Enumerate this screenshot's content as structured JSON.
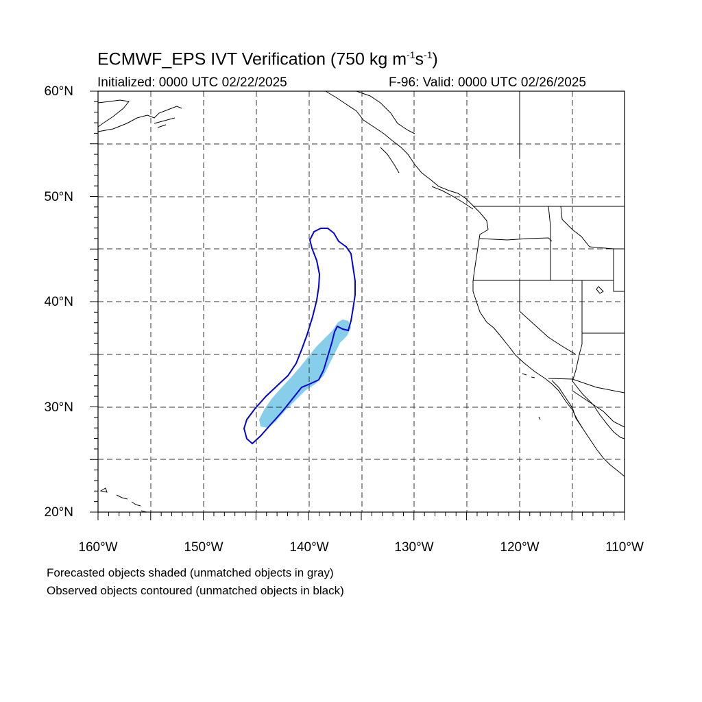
{
  "title_main": "ECMWF_EPS IVT Verification (750 kg m",
  "title_sup1": "-1",
  "title_mid": "s",
  "title_sup2": "-1",
  "title_end": ")",
  "initialized": "Initialized: 0000 UTC 02/22/2025",
  "valid": "F-96: Valid: 0000 UTC 02/26/2025",
  "lat_labels": [
    "60°N",
    "50°N",
    "40°N",
    "30°N",
    "20°N"
  ],
  "lon_labels": [
    "160°W",
    "150°W",
    "140°W",
    "130°W",
    "120°W",
    "110°W"
  ],
  "legend_note_1": "Forecasted objects shaded (unmatched objects in gray)",
  "legend_note_2": "Observed objects contoured (unmatched objects in black)",
  "colors": {
    "forecast_fill": "#87ceeb",
    "observed_contour": "#0000dd",
    "coastline": "#000000",
    "grid": "#000000"
  },
  "map_extent": {
    "lon_min": -160,
    "lon_max": -110,
    "lat_min": 20,
    "lat_max": 60
  }
}
